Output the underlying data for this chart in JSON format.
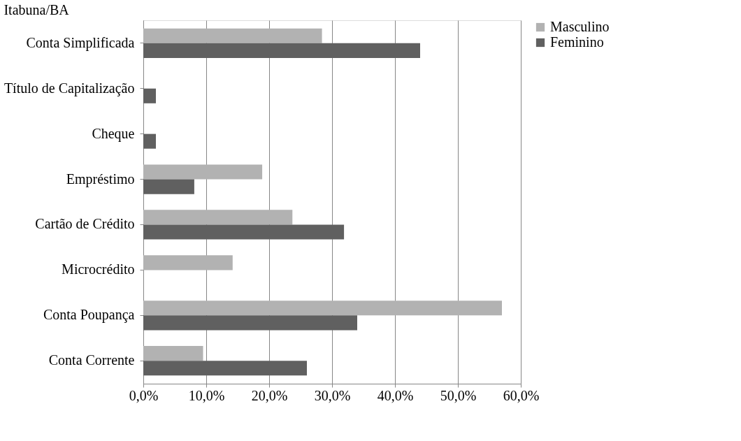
{
  "chart_data": {
    "type": "bar",
    "orientation": "horizontal",
    "title": "Itabuna/BA",
    "categories": [
      "Conta Simplificada",
      "Título de Capitalização",
      "Cheque",
      "Empréstimo",
      "Cartão de Crédito",
      "Microcrédito",
      "Conta Poupança",
      "Conta Corrente"
    ],
    "series": [
      {
        "name": "Masculino",
        "color": "#b2b2b2",
        "values": [
          28.4,
          null,
          null,
          18.9,
          23.7,
          14.2,
          57.0,
          9.5
        ]
      },
      {
        "name": "Feminino",
        "color": "#606060",
        "values": [
          44.0,
          2.0,
          2.0,
          8.1,
          31.9,
          null,
          34.0,
          26.0
        ]
      }
    ],
    "xlim": [
      0,
      60
    ],
    "xticks": [
      {
        "value": 0,
        "label": "0,0%"
      },
      {
        "value": 10,
        "label": "10,0%"
      },
      {
        "value": 20,
        "label": "20,0%"
      },
      {
        "value": 30,
        "label": "30,0%"
      },
      {
        "value": 40,
        "label": "40,0%"
      },
      {
        "value": 50,
        "label": "50,0%"
      },
      {
        "value": 60,
        "label": "60,0%"
      }
    ],
    "grid": "x",
    "legend": "right"
  }
}
